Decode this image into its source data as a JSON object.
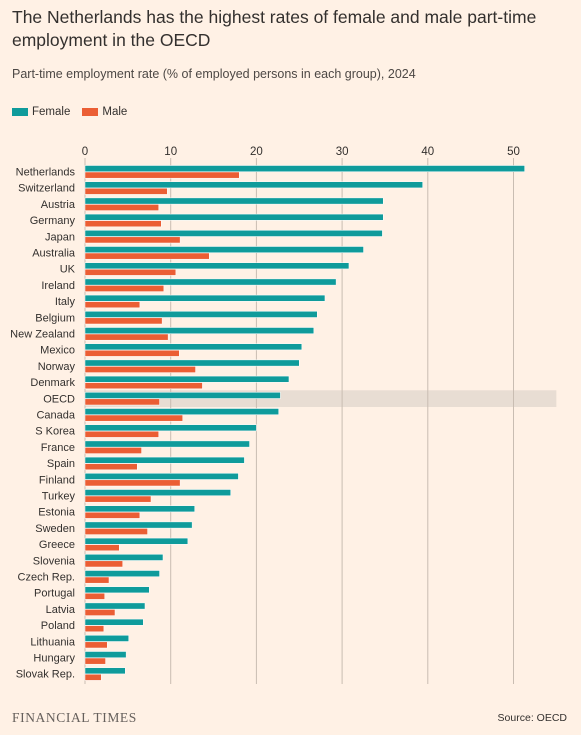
{
  "title": "The Netherlands has the highest rates of female and male part-time employment in the OECD",
  "subtitle": "Part-time employment rate (% of employed persons in each group), 2024",
  "logo": "FINANCIAL TIMES",
  "source": "Source: OECD",
  "colors": {
    "background": "#fff1e5",
    "female": "#0f9b9b",
    "male": "#eb5e34",
    "highlight": "#e8ddd3",
    "grid": "#c9bdb2"
  },
  "chart_data": {
    "type": "bar",
    "orientation": "horizontal",
    "xlim": [
      0,
      55
    ],
    "xticks": [
      "0",
      "10",
      "20",
      "30",
      "40",
      "50"
    ],
    "xtick_values": [
      0,
      10,
      20,
      30,
      40,
      50
    ],
    "legend_position": "top-left",
    "grid": true,
    "highlight_category": "OECD",
    "categories": [
      "Netherlands",
      "Switzerland",
      "Austria",
      "Germany",
      "Japan",
      "Australia",
      "UK",
      "Ireland",
      "Italy",
      "Belgium",
      "New Zealand",
      "Mexico",
      "Norway",
      "Denmark",
      "OECD",
      "Canada",
      "S Korea",
      "France",
      "Spain",
      "Finland",
      "Turkey",
      "Estonia",
      "Sweden",
      "Greece",
      "Slovenia",
      "Czech Rep.",
      "Portugal",
      "Latvia",
      "Poland",
      "Lithuania",
      "Hungary",
      "Slovak Rep."
    ],
    "series": [
      {
        "name": "Female",
        "values": [
          51.3,
          39.4,
          34.8,
          34.8,
          34.7,
          32.5,
          30.8,
          29.3,
          28.0,
          27.1,
          26.7,
          25.3,
          25.0,
          23.8,
          22.8,
          22.6,
          20.0,
          19.2,
          18.6,
          17.9,
          17.0,
          12.8,
          12.5,
          12.0,
          9.1,
          8.7,
          7.5,
          7.0,
          6.8,
          5.1,
          4.8,
          4.7
        ]
      },
      {
        "name": "Male",
        "values": [
          18.0,
          9.6,
          8.6,
          8.9,
          11.1,
          14.5,
          10.6,
          9.2,
          6.4,
          9.0,
          9.7,
          11.0,
          12.9,
          13.7,
          8.7,
          11.4,
          8.6,
          6.6,
          6.1,
          11.1,
          7.7,
          6.4,
          7.3,
          4.0,
          4.4,
          2.8,
          2.3,
          3.5,
          2.2,
          2.6,
          2.4,
          1.9
        ]
      }
    ]
  }
}
